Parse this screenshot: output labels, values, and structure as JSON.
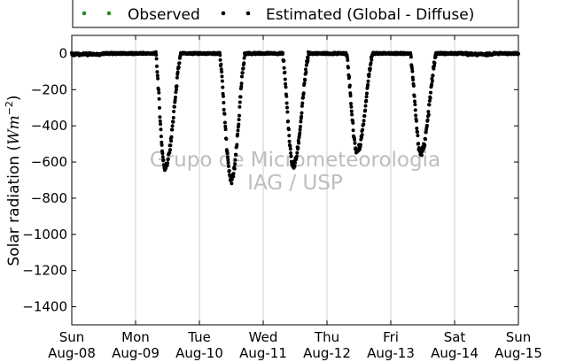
{
  "chart_data": {
    "type": "scatter",
    "title": "",
    "xlabel": "",
    "ylabel_main": "Solar radiation (",
    "ylabel_unit": "Wm",
    "ylabel_exp": "−2",
    "ylabel_close": ")",
    "ylim": [
      -1500,
      100
    ],
    "yticks": [
      0,
      -200,
      -400,
      -600,
      -800,
      -1000,
      -1200,
      -1400
    ],
    "ytick_labels": [
      "0",
      "−200",
      "−400",
      "−600",
      "−800",
      "−1000",
      "−1200",
      "−1400"
    ],
    "xlim_days": [
      0,
      7
    ],
    "xticks": [
      {
        "day": "Sun",
        "date": "Aug-08"
      },
      {
        "day": "Mon",
        "date": "Aug-09"
      },
      {
        "day": "Tue",
        "date": "Aug-10"
      },
      {
        "day": "Wed",
        "date": "Aug-11"
      },
      {
        "day": "Thu",
        "date": "Aug-12"
      },
      {
        "day": "Fri",
        "date": "Aug-13"
      },
      {
        "day": "Sat",
        "date": "Aug-14"
      },
      {
        "day": "Sun",
        "date": "Aug-15"
      }
    ],
    "grid": "vertical",
    "legend_position": "top",
    "series": [
      {
        "name": "Observed",
        "color": "#2a8a2a",
        "values": []
      },
      {
        "name": "Estimated (Global - Diffuse)",
        "color": "#000000",
        "daily_events": [
          {
            "date": "Aug-09",
            "start": 0.31,
            "trough": 0.46,
            "end": 0.72,
            "min": -630
          },
          {
            "date": "Aug-10",
            "start": 0.31,
            "trough": 0.5,
            "end": 0.72,
            "min": -700
          },
          {
            "date": "Aug-11",
            "start": 0.3,
            "trough": 0.47,
            "end": 0.72,
            "min": -620
          },
          {
            "date": "Aug-12",
            "start": 0.3,
            "trough": 0.47,
            "end": 0.72,
            "min": -540
          },
          {
            "date": "Aug-13",
            "start": 0.3,
            "trough": 0.47,
            "end": 0.72,
            "min": -550
          }
        ]
      }
    ]
  },
  "watermark": {
    "line1": "Grupo de Micrometeorologia",
    "line2": "IAG / USP"
  }
}
